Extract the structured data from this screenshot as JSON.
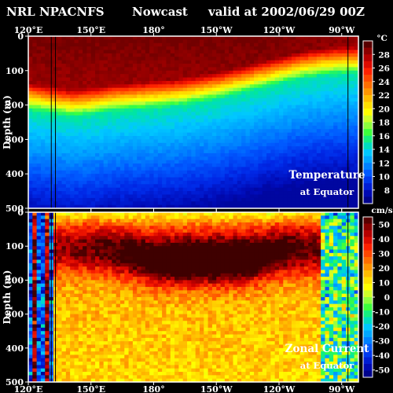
{
  "header": {
    "model": "NRL NPACNFS",
    "run": "Nowcast",
    "valid": "valid at 2002/06/29 00Z"
  },
  "chart_data": [
    {
      "type": "heatmap",
      "title": "Temperature",
      "subtitle": "at Equator",
      "ylabel": "Depth (m)",
      "x_ticks": [
        "120°E",
        "150°E",
        "180°",
        "150°W",
        "120°W",
        "90°W"
      ],
      "x_tick_lon": [
        120,
        150,
        180,
        210,
        240,
        270
      ],
      "xlim": [
        120,
        278
      ],
      "y_ticks": [
        0,
        100,
        200,
        300,
        400,
        500
      ],
      "ylim": [
        0,
        500
      ],
      "units": "°C",
      "colorbar_ticks": [
        28,
        26,
        24,
        22,
        20,
        18,
        16,
        14,
        12,
        10,
        8
      ],
      "colorbar_range": [
        6,
        30
      ],
      "thermocline": {
        "lon": [
          120,
          130,
          140,
          150,
          160,
          170,
          180,
          190,
          200,
          210,
          220,
          230,
          240,
          250,
          260,
          270,
          278
        ],
        "depth_m": [
          175,
          185,
          195,
          190,
          180,
          175,
          170,
          165,
          155,
          145,
          130,
          115,
          100,
          85,
          75,
          70,
          70
        ]
      },
      "surface_max_c": 29,
      "deep_min_c": 7
    },
    {
      "type": "heatmap",
      "title": "Zonal Current",
      "subtitle": "at Equator",
      "ylabel": "Depth (m)",
      "x_ticks": [
        "120°E",
        "150°E",
        "180°",
        "150°W",
        "120°W",
        "90°W"
      ],
      "x_tick_lon": [
        120,
        150,
        180,
        210,
        240,
        270
      ],
      "xlim": [
        120,
        278
      ],
      "y_ticks": [
        0,
        100,
        200,
        300,
        400,
        500
      ],
      "ylim": [
        0,
        500
      ],
      "units": "cm/s",
      "colorbar_ticks": [
        50,
        40,
        30,
        20,
        10,
        0,
        -10,
        -20,
        -30,
        -40,
        -50
      ],
      "colorbar_range": [
        -55,
        55
      ],
      "undercurrent_core": {
        "lon": [
          155,
          170,
          180,
          195,
          210,
          225,
          235,
          245
        ],
        "depth_m": [
          110,
          125,
          140,
          140,
          140,
          135,
          125,
          110
        ],
        "speed_cms": 55
      }
    }
  ],
  "colors": {
    "background": "#000000",
    "text": "#ffffff",
    "frame": "#ffffff"
  },
  "colormap": [
    "#3f0000",
    "#8b0000",
    "#cc0000",
    "#ff2000",
    "#ff5a00",
    "#ff9400",
    "#ffcf00",
    "#ffff00",
    "#b4ff3c",
    "#3cff3c",
    "#00e6a0",
    "#00c8ff",
    "#0096ff",
    "#005aff",
    "#0028e6",
    "#000ab4",
    "#000078"
  ]
}
